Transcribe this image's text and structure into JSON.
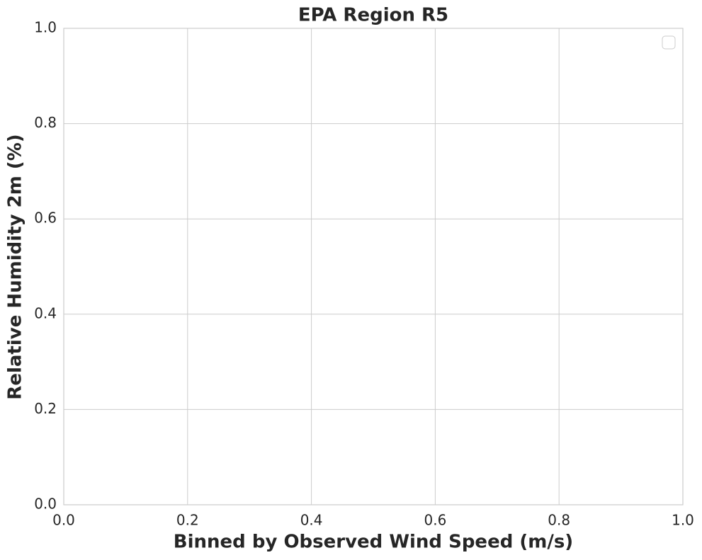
{
  "chart_data": {
    "type": "line",
    "title": "EPA Region R5",
    "xlabel": "Binned by Observed Wind Speed (m/s)",
    "ylabel": "Relative Humidity 2m (%)",
    "series": [],
    "xlim": [
      0,
      1
    ],
    "ylim": [
      0,
      1
    ],
    "xticks": [
      {
        "value": 0,
        "label": "0.0"
      },
      0.2,
      0.4,
      0.6,
      0.8,
      {
        "value": 1,
        "label": "1.0"
      }
    ],
    "yticks": [
      {
        "value": 0,
        "label": "0.0"
      },
      0.2,
      0.4,
      0.6,
      0.8,
      {
        "value": 1,
        "label": "1.0"
      }
    ],
    "grid": true,
    "legend": "upper right"
  }
}
